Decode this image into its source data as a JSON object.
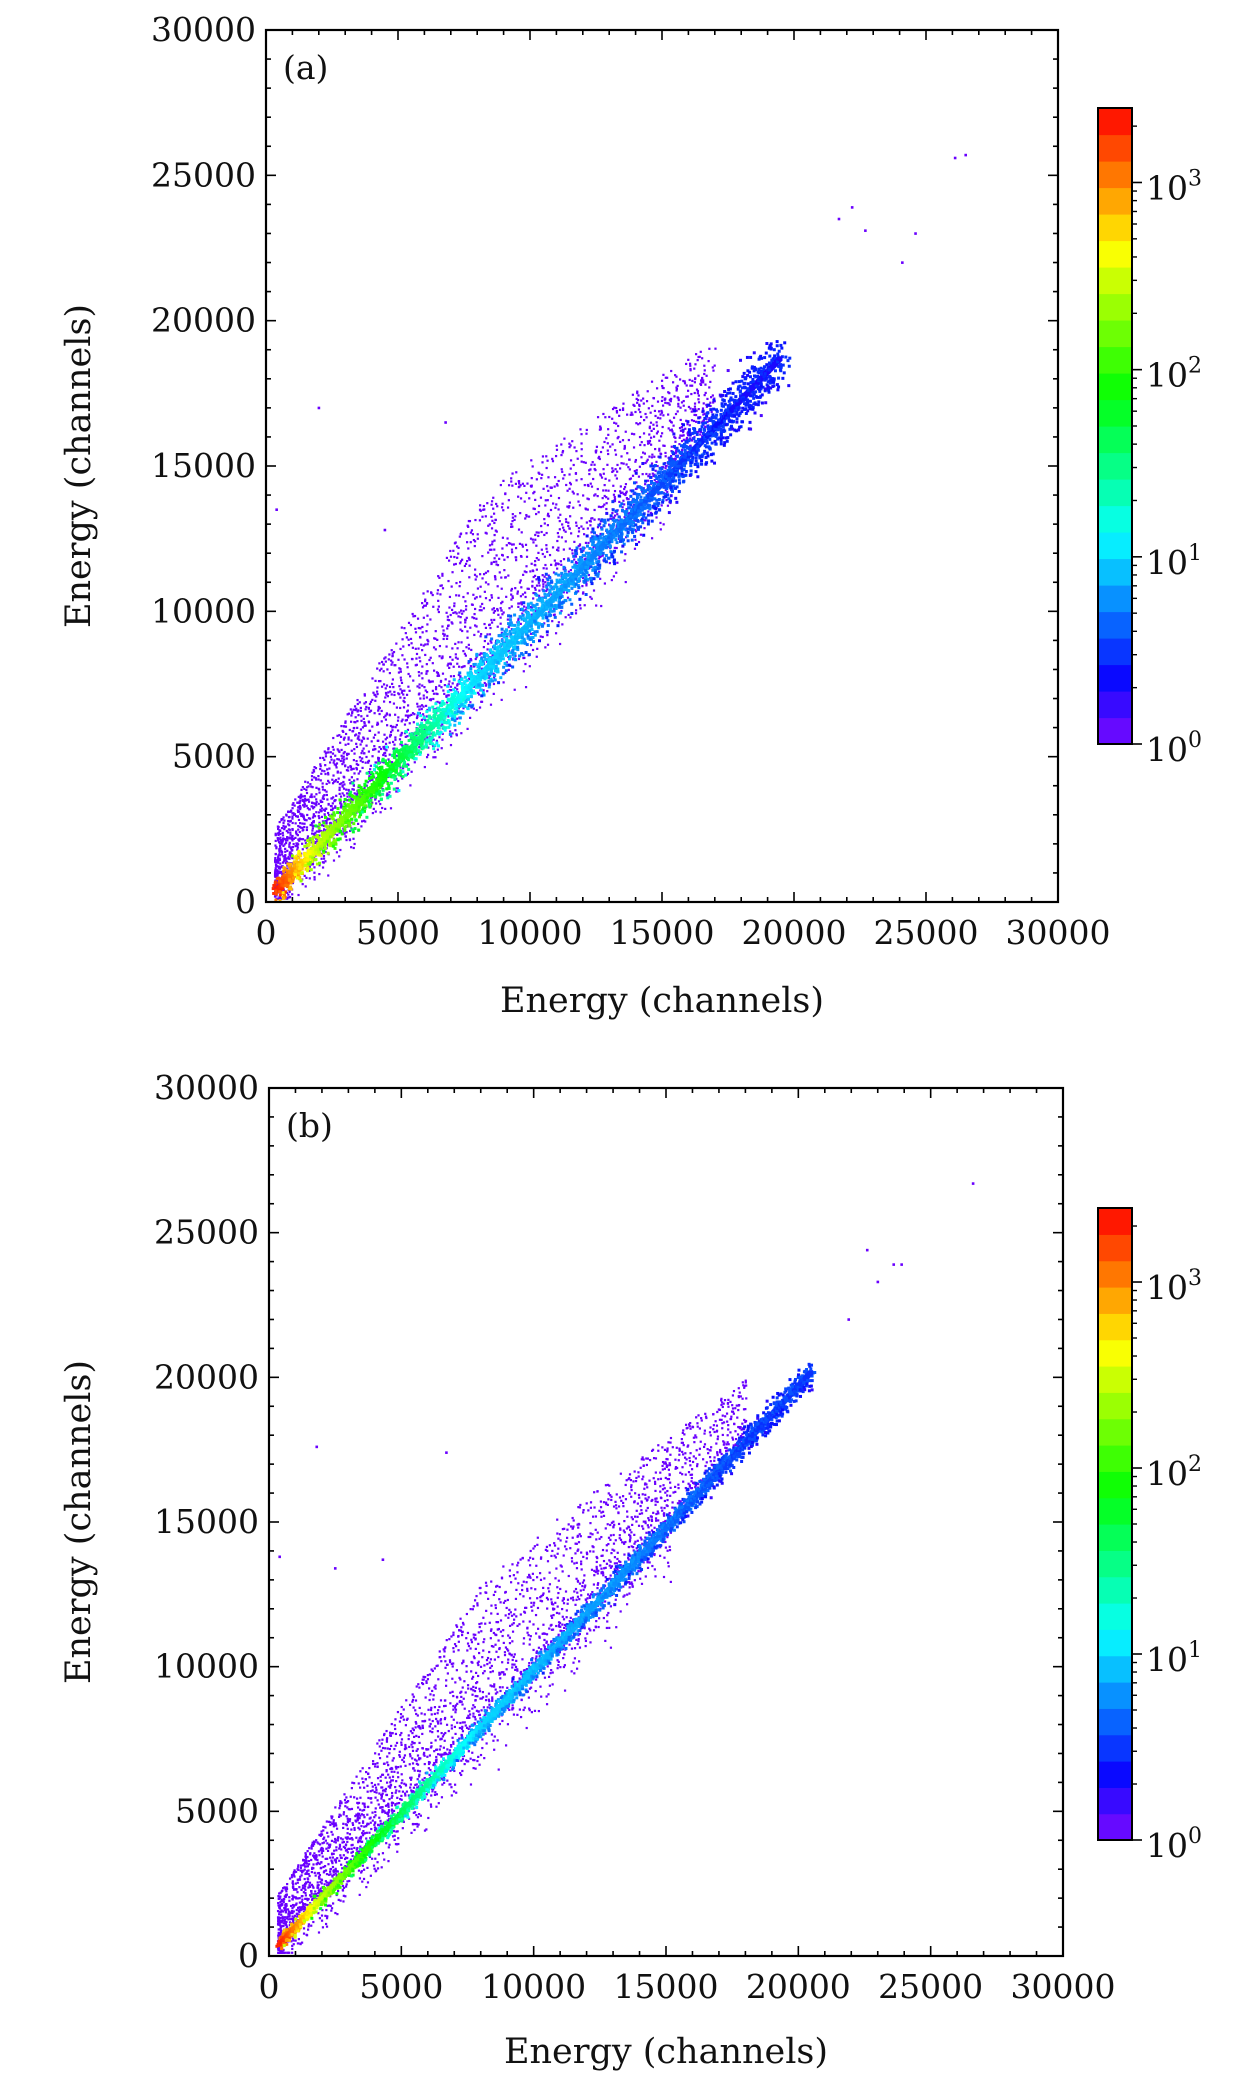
{
  "chart_data": [
    {
      "type": "heatmap",
      "panel_label": "(a)",
      "xlabel": "Energy (channels)",
      "ylabel": "Energy (channels)",
      "xlim": [
        0,
        30000
      ],
      "ylim": [
        0,
        30000
      ],
      "xticks": [
        0,
        5000,
        10000,
        15000,
        20000,
        25000,
        30000
      ],
      "yticks": [
        0,
        5000,
        10000,
        15000,
        20000,
        25000,
        30000
      ],
      "xtick_labels": [
        "0",
        "5000",
        "10000",
        "15000",
        "20000",
        "25000",
        "30000"
      ],
      "ytick_labels": [
        "0",
        "5000",
        "10000",
        "15000",
        "20000",
        "25000",
        "30000"
      ],
      "colorbar": {
        "scale": "log",
        "range": [
          1,
          2500
        ],
        "ticks": [
          {
            "value": 1,
            "base": "10",
            "exp": "0"
          },
          {
            "value": 10,
            "base": "10",
            "exp": "1"
          },
          {
            "value": 100,
            "base": "10",
            "exp": "2"
          },
          {
            "value": 1000,
            "base": "10",
            "exp": "3"
          }
        ]
      },
      "diagonal": {
        "x_start": 400,
        "x_end": 19500,
        "slope": 0.96,
        "spread": 350
      },
      "density_profile": [
        {
          "x": 500,
          "counts": 2000
        },
        {
          "x": 2000,
          "counts": 300
        },
        {
          "x": 4500,
          "counts": 80
        },
        {
          "x": 8000,
          "counts": 10
        },
        {
          "x": 13000,
          "counts": 5
        },
        {
          "x": 18000,
          "counts": 2
        }
      ],
      "upper_cloud": {
        "x_range": [
          300,
          17000
        ],
        "y_offset_max": 6000
      },
      "outliers": [
        {
          "x": 26500,
          "y": 25700
        },
        {
          "x": 26100,
          "y": 25600
        },
        {
          "x": 22200,
          "y": 23900
        },
        {
          "x": 21700,
          "y": 23500
        },
        {
          "x": 22700,
          "y": 23100
        },
        {
          "x": 24100,
          "y": 22000
        },
        {
          "x": 24600,
          "y": 23000
        },
        {
          "x": 2000,
          "y": 17000
        },
        {
          "x": 6800,
          "y": 16500
        },
        {
          "x": 4500,
          "y": 12800
        },
        {
          "x": 400,
          "y": 13500
        }
      ]
    },
    {
      "type": "heatmap",
      "panel_label": "(b)",
      "xlabel": "Energy (channels)",
      "ylabel": "Energy (channels)",
      "xlim": [
        0,
        30000
      ],
      "ylim": [
        0,
        30000
      ],
      "xticks": [
        0,
        5000,
        10000,
        15000,
        20000,
        25000,
        30000
      ],
      "yticks": [
        0,
        5000,
        10000,
        15000,
        20000,
        25000,
        30000
      ],
      "xtick_labels": [
        "0",
        "5000",
        "10000",
        "15000",
        "20000",
        "25000",
        "30000"
      ],
      "ytick_labels": [
        "0",
        "5000",
        "10000",
        "15000",
        "20000",
        "25000",
        "30000"
      ],
      "colorbar": {
        "scale": "log",
        "range": [
          1,
          2500
        ],
        "ticks": [
          {
            "value": 1,
            "base": "10",
            "exp": "0"
          },
          {
            "value": 10,
            "base": "10",
            "exp": "1"
          },
          {
            "value": 100,
            "base": "10",
            "exp": "2"
          },
          {
            "value": 1000,
            "base": "10",
            "exp": "3"
          }
        ]
      },
      "diagonal": {
        "x_start": 400,
        "x_end": 20500,
        "slope": 0.985,
        "spread": 150
      },
      "density_profile": [
        {
          "x": 500,
          "counts": 2000
        },
        {
          "x": 2000,
          "counts": 300
        },
        {
          "x": 4500,
          "counts": 60
        },
        {
          "x": 8000,
          "counts": 10
        },
        {
          "x": 13000,
          "counts": 6
        },
        {
          "x": 18000,
          "counts": 3
        }
      ],
      "upper_cloud": {
        "x_range": [
          300,
          18000
        ],
        "y_offset_max": 5000
      },
      "outliers": [
        {
          "x": 26600,
          "y": 26700
        },
        {
          "x": 22600,
          "y": 24400
        },
        {
          "x": 23600,
          "y": 23900
        },
        {
          "x": 23900,
          "y": 23900
        },
        {
          "x": 21900,
          "y": 22000
        },
        {
          "x": 23000,
          "y": 23300
        },
        {
          "x": 1800,
          "y": 17600
        },
        {
          "x": 6700,
          "y": 17400
        },
        {
          "x": 4300,
          "y": 13700
        },
        {
          "x": 2500,
          "y": 13400
        },
        {
          "x": 400,
          "y": 13800
        }
      ]
    }
  ]
}
